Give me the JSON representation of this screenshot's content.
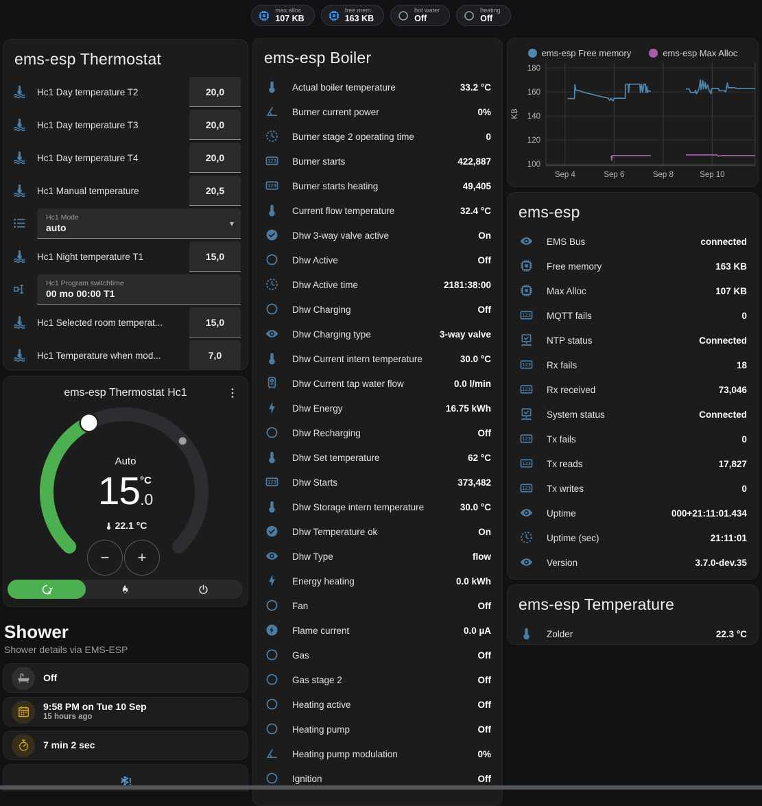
{
  "chips": [
    {
      "label": "max alloc",
      "value": "107 KB",
      "icon": "memory",
      "cls": "c-blue"
    },
    {
      "label": "free mem",
      "value": "163 KB",
      "icon": "memory",
      "cls": "c-blue"
    },
    {
      "label": "hot water",
      "value": "Off",
      "icon": "radiobox",
      "cls": "c-grey"
    },
    {
      "label": "heating",
      "value": "Off",
      "icon": "radiobox",
      "cls": "c-grey"
    }
  ],
  "thermostat_card": {
    "title": "ems-esp Thermostat",
    "rows": [
      {
        "icon": "coolant",
        "label": "Hc1 Day temperature T2",
        "input": "20,0",
        "num": true
      },
      {
        "icon": "coolant",
        "label": "Hc1 Day temperature T3",
        "input": "20,0",
        "num": true
      },
      {
        "icon": "coolant",
        "label": "Hc1 Day temperature T4",
        "input": "20,0",
        "num": true
      },
      {
        "icon": "coolant",
        "label": "Hc1 Manual temperature",
        "input": "20,5",
        "num": true
      },
      {
        "icon": "list",
        "field_label": "Hc1 Mode",
        "field_value": "auto",
        "field": true,
        "caret": true
      },
      {
        "icon": "coolant",
        "label": "Hc1 Night temperature T1",
        "input": "15,0",
        "num": true
      },
      {
        "icon": "switchtime",
        "field_label": "Hc1 Program switchtime",
        "field_value": "00 mo 00:00 T1",
        "field": true
      },
      {
        "icon": "coolant",
        "label": "Hc1 Selected room temperat...",
        "input": "15,0",
        "num": true
      },
      {
        "icon": "coolant",
        "label": "Hc1 Temperature when mod...",
        "input": "7,0",
        "num": true
      }
    ]
  },
  "dial_card": {
    "title": "ems-esp Thermostat Hc1",
    "mode_label": "Auto",
    "target_whole": "15",
    "target_unit": "°C",
    "target_decimal": ".0",
    "current": "22.1 °C",
    "minus_label": "−",
    "plus_label": "+",
    "modes": [
      {
        "icon": "thermostat-auto",
        "cls": "active"
      },
      {
        "icon": "fire"
      },
      {
        "icon": "power"
      }
    ]
  },
  "shower": {
    "title": "Shower",
    "subtitle": "Shower details via EMS-ESP",
    "tiles": [
      {
        "icon": "bathtub",
        "cls": "i-grey",
        "primary": "Off"
      },
      {
        "icon": "calendar",
        "cls": "i-amber",
        "primary": "9:58 PM on Tue 10 Sep",
        "secondary": "15 hours ago"
      },
      {
        "icon": "timer",
        "cls": "i-amber",
        "primary": "7 min 2 sec"
      },
      {
        "icon": "snowflake-alert",
        "cls": "i-blue-center",
        "center": true
      }
    ]
  },
  "boiler_card": {
    "title": "ems-esp Boiler",
    "rows": [
      {
        "icon": "thermo",
        "label": "Actual boiler temperature",
        "value": "33.2 °C"
      },
      {
        "icon": "angle",
        "label": "Burner current power",
        "value": "0%"
      },
      {
        "icon": "clock",
        "label": "Burner stage 2 operating time",
        "value": "0"
      },
      {
        "icon": "counter",
        "label": "Burner starts",
        "value": "422,887"
      },
      {
        "icon": "counter",
        "label": "Burner starts heating",
        "value": "49,405"
      },
      {
        "icon": "thermo",
        "label": "Current flow temperature",
        "value": "32.4 °C"
      },
      {
        "icon": "check-circle",
        "label": "Dhw 3-way valve active",
        "value": "On"
      },
      {
        "icon": "circle",
        "label": "Dhw Active",
        "value": "Off"
      },
      {
        "icon": "clock",
        "label": "Dhw Active time",
        "value": "2181:38:00"
      },
      {
        "icon": "circle",
        "label": "Dhw Charging",
        "value": "Off"
      },
      {
        "icon": "eye",
        "label": "Dhw Charging type",
        "value": "3-way valve"
      },
      {
        "icon": "thermo",
        "label": "Dhw Current intern temperature",
        "value": "30.0 °C"
      },
      {
        "icon": "boiler",
        "label": "Dhw Current tap water flow",
        "value": "0.0 l/min"
      },
      {
        "icon": "flash",
        "label": "Dhw Energy",
        "value": "16.75 kWh"
      },
      {
        "icon": "circle",
        "label": "Dhw Recharging",
        "value": "Off"
      },
      {
        "icon": "thermo",
        "label": "Dhw Set temperature",
        "value": "62 °C"
      },
      {
        "icon": "counter",
        "label": "Dhw Starts",
        "value": "373,482"
      },
      {
        "icon": "thermo",
        "label": "Dhw Storage intern temperature",
        "value": "30.0 °C"
      },
      {
        "icon": "check-circle",
        "label": "Dhw Temperature ok",
        "value": "On"
      },
      {
        "icon": "eye",
        "label": "Dhw Type",
        "value": "flow"
      },
      {
        "icon": "flash",
        "label": "Energy heating",
        "value": "0.0 kWh"
      },
      {
        "icon": "circle",
        "label": "Fan",
        "value": "Off"
      },
      {
        "icon": "flash-circle",
        "label": "Flame current",
        "value": "0.0 µA"
      },
      {
        "icon": "circle",
        "label": "Gas",
        "value": "Off"
      },
      {
        "icon": "circle",
        "label": "Gas stage 2",
        "value": "Off"
      },
      {
        "icon": "circle",
        "label": "Heating active",
        "value": "Off"
      },
      {
        "icon": "circle",
        "label": "Heating pump",
        "value": "Off"
      },
      {
        "icon": "angle",
        "label": "Heating pump modulation",
        "value": "0%"
      },
      {
        "icon": "circle",
        "label": "Ignition",
        "value": "Off"
      }
    ]
  },
  "device_card": {
    "title": "ems-esp",
    "rows": [
      {
        "icon": "eye",
        "label": "EMS Bus",
        "value": "connected"
      },
      {
        "icon": "memory",
        "label": "Free memory",
        "value": "163 KB"
      },
      {
        "icon": "memory",
        "label": "Max Alloc",
        "value": "107 KB"
      },
      {
        "icon": "counter",
        "label": "MQTT fails",
        "value": "0"
      },
      {
        "icon": "monitor",
        "label": "NTP status",
        "value": "Connected"
      },
      {
        "icon": "counter",
        "label": "Rx fails",
        "value": "18"
      },
      {
        "icon": "counter",
        "label": "Rx received",
        "value": "73,046"
      },
      {
        "icon": "monitor",
        "label": "System status",
        "value": "Connected"
      },
      {
        "icon": "counter",
        "label": "Tx fails",
        "value": "0"
      },
      {
        "icon": "counter",
        "label": "Tx reads",
        "value": "17,827"
      },
      {
        "icon": "counter",
        "label": "Tx writes",
        "value": "0"
      },
      {
        "icon": "eye",
        "label": "Uptime",
        "value": "000+21:11:01.434"
      },
      {
        "icon": "clock",
        "label": "Uptime (sec)",
        "value": "21:11:01"
      },
      {
        "icon": "eye",
        "label": "Version",
        "value": "3.7.0-dev.35"
      }
    ]
  },
  "temperature_card": {
    "title": "ems-esp Temperature",
    "rows": [
      {
        "icon": "thermo",
        "label": "Zolder",
        "value": "22.3 °C"
      }
    ]
  },
  "chart_data": {
    "type": "line",
    "ylabel": "KB",
    "legend": [
      {
        "name": "ems-esp Free memory",
        "cls": "c-free",
        "color": "#4d89b4"
      },
      {
        "name": "ems-esp Max Alloc",
        "cls": "c-alloc",
        "color": "#a55cab"
      }
    ],
    "x_ticks": [
      {
        "v": 4,
        "label": "Sep 4"
      },
      {
        "v": 6,
        "label": "Sep 6"
      },
      {
        "v": 8,
        "label": "Sep 8"
      },
      {
        "v": 10,
        "label": "Sep 10"
      }
    ],
    "y_ticks": [
      100,
      120,
      140,
      160,
      180
    ],
    "xlim": [
      3.22,
      11.75
    ],
    "ylim": [
      98.9,
      184.6
    ],
    "grid": true,
    "legend_position": "top",
    "series": [
      {
        "name": "ems-esp Free memory",
        "color": "#4d89b4",
        "segments": [
          [
            [
              4.1,
              154.5
            ],
            [
              4.38,
              154.5
            ],
            [
              4.4,
              166
            ],
            [
              4.44,
              161.5
            ],
            [
              4.6,
              161
            ],
            [
              4.8,
              159.5
            ],
            [
              5.0,
              158.5
            ],
            [
              5.2,
              157.5
            ],
            [
              5.4,
              156.5
            ],
            [
              5.6,
              155.5
            ],
            [
              5.75,
              155
            ],
            [
              5.82,
              153
            ],
            [
              5.88,
              154.8
            ],
            [
              5.95,
              152.5
            ],
            [
              6.0,
              154.8
            ],
            [
              6.45,
              154.8
            ],
            [
              6.47,
              166.5
            ],
            [
              6.57,
              166.5
            ],
            [
              6.59,
              159.5
            ],
            [
              6.62,
              166.5
            ],
            [
              7.05,
              166.5
            ],
            [
              7.07,
              159.5
            ],
            [
              7.12,
              166.5
            ],
            [
              7.16,
              159.5
            ],
            [
              7.22,
              166.5
            ],
            [
              7.28,
              166.5
            ],
            [
              7.3,
              159.5
            ],
            [
              7.34,
              164.5
            ],
            [
              7.36,
              159.5
            ],
            [
              7.4,
              161
            ],
            [
              7.5,
              160.5
            ]
          ],
          [
            [
              8.92,
              162.5
            ],
            [
              9.05,
              162.5
            ],
            [
              9.08,
              161.5
            ],
            [
              9.12,
              159.5
            ],
            [
              9.28,
              159.5
            ],
            [
              9.32,
              161.5
            ],
            [
              9.36,
              158.5
            ],
            [
              9.45,
              162
            ],
            [
              9.52,
              170
            ],
            [
              9.54,
              162
            ],
            [
              9.62,
              169.5
            ],
            [
              9.64,
              162.5
            ],
            [
              9.72,
              168
            ],
            [
              9.74,
              162.5
            ],
            [
              9.82,
              166
            ],
            [
              9.84,
              163
            ],
            [
              9.95,
              158.5
            ],
            [
              9.98,
              163
            ],
            [
              10.25,
              163
            ],
            [
              10.28,
              161
            ],
            [
              10.5,
              161
            ],
            [
              10.55,
              160
            ],
            [
              10.62,
              167.5
            ],
            [
              10.65,
              163.5
            ],
            [
              10.9,
              163.5
            ],
            [
              11.0,
              163
            ],
            [
              11.75,
              163
            ]
          ]
        ]
      },
      {
        "name": "ems-esp Max Alloc",
        "color": "#a55cab",
        "segments": [
          [
            [
              5.88,
              107
            ],
            [
              5.9,
              103
            ],
            [
              5.93,
              107
            ],
            [
              7.5,
              107
            ]
          ],
          [
            [
              8.92,
              107.5
            ],
            [
              10.2,
              107.5
            ],
            [
              10.25,
              106.5
            ],
            [
              10.4,
              107
            ],
            [
              11.75,
              107
            ]
          ]
        ]
      }
    ]
  }
}
